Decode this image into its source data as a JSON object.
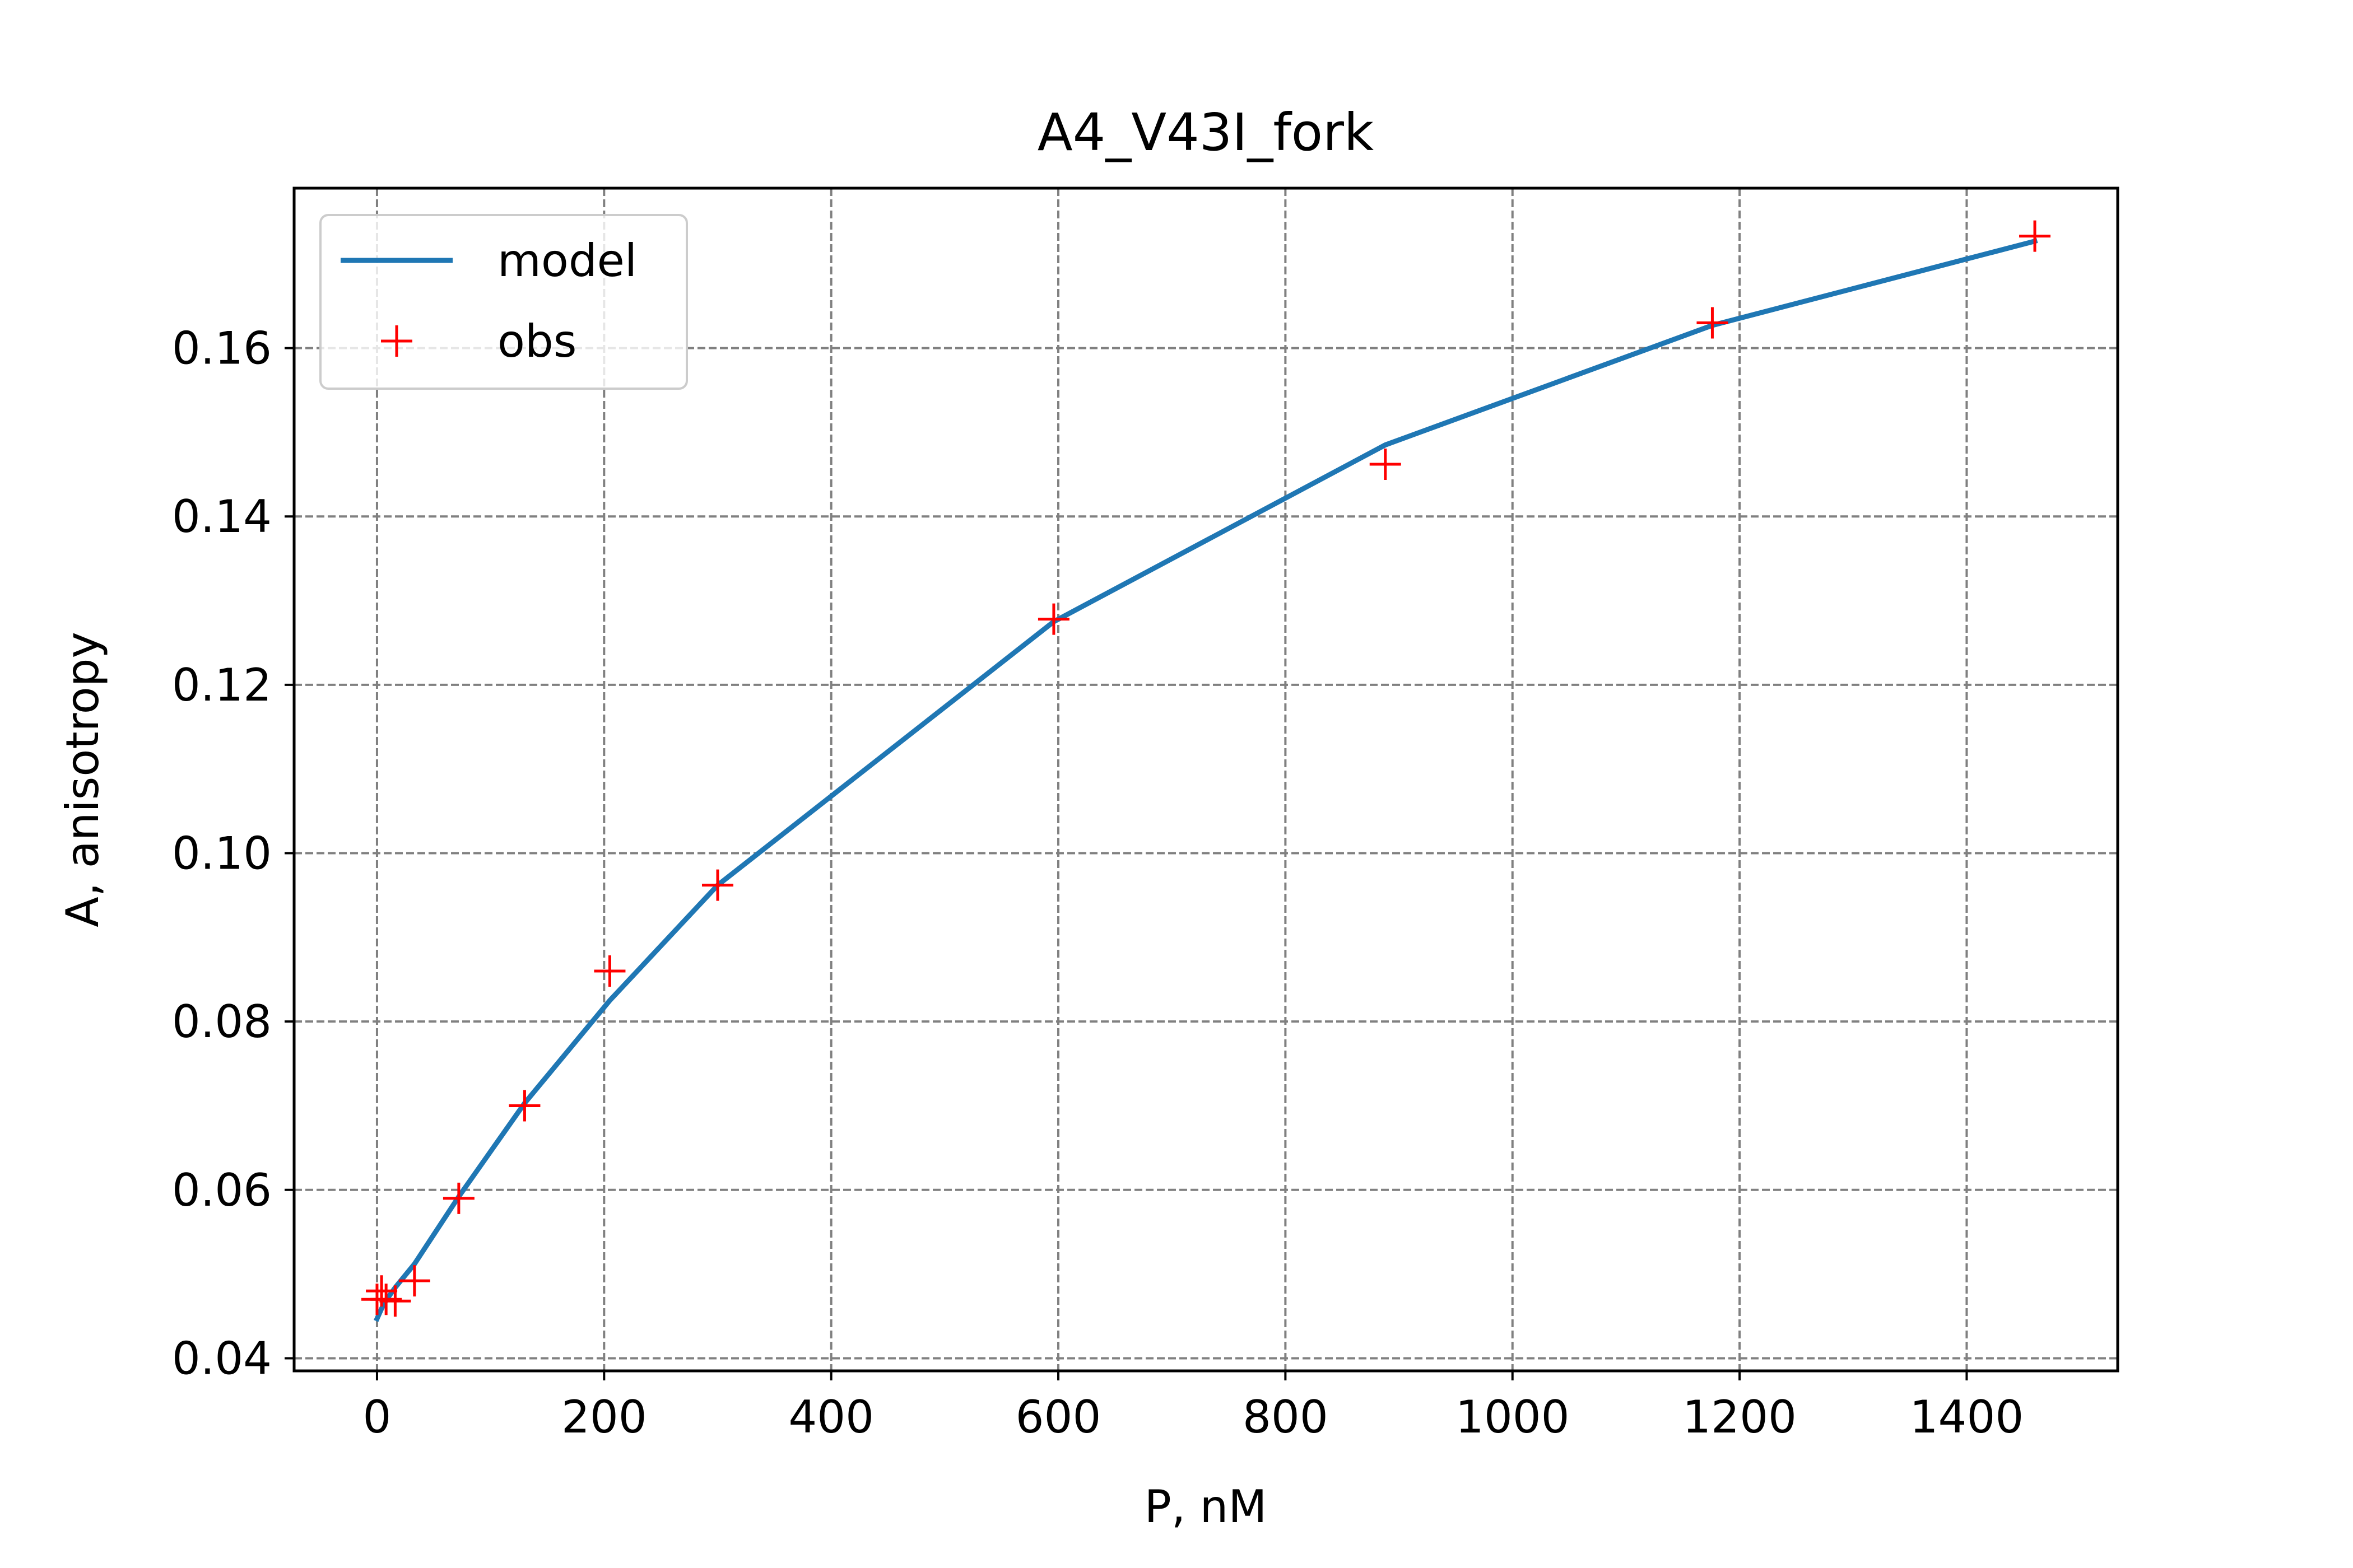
{
  "chart_data": {
    "type": "line",
    "title": "A4_V43I_fork",
    "xlabel": "P, nM",
    "ylabel": "A, anisotropy",
    "xlim": [
      -73,
      1533
    ],
    "ylim": [
      0.0385,
      0.179
    ],
    "x_ticks": [
      0,
      200,
      400,
      600,
      800,
      1000,
      1200,
      1400
    ],
    "x_tick_labels": [
      "0",
      "200",
      "400",
      "600",
      "800",
      "1000",
      "1200",
      "1400"
    ],
    "y_ticks": [
      0.04,
      0.06,
      0.08,
      0.1,
      0.12,
      0.14,
      0.16
    ],
    "y_tick_labels": [
      "0.04",
      "0.06",
      "0.08",
      "0.10",
      "0.12",
      "0.14",
      "0.16"
    ],
    "grid": true,
    "grid_style": "dashed",
    "legend_position": "upper-left",
    "series": [
      {
        "name": "model",
        "style": "line",
        "color": "#1f77b4",
        "x": [
          0,
          4,
          8,
          16,
          33,
          72,
          130,
          205,
          300,
          596,
          888,
          1176,
          1460
        ],
        "y": [
          0.0447,
          0.0459,
          0.0469,
          0.0484,
          0.0512,
          0.0592,
          0.0703,
          0.0825,
          0.0962,
          0.1275,
          0.1485,
          0.1627,
          0.1727
        ]
      },
      {
        "name": "obs",
        "style": "marker-plus",
        "color": "#ff0000",
        "x": [
          0,
          4,
          8,
          16,
          33,
          72,
          130,
          205,
          300,
          596,
          888,
          1176,
          1460
        ],
        "y": [
          0.047,
          0.048,
          0.047,
          0.0468,
          0.0492,
          0.059,
          0.07,
          0.086,
          0.0962,
          0.1278,
          0.1462,
          0.163,
          0.1733
        ]
      }
    ]
  }
}
